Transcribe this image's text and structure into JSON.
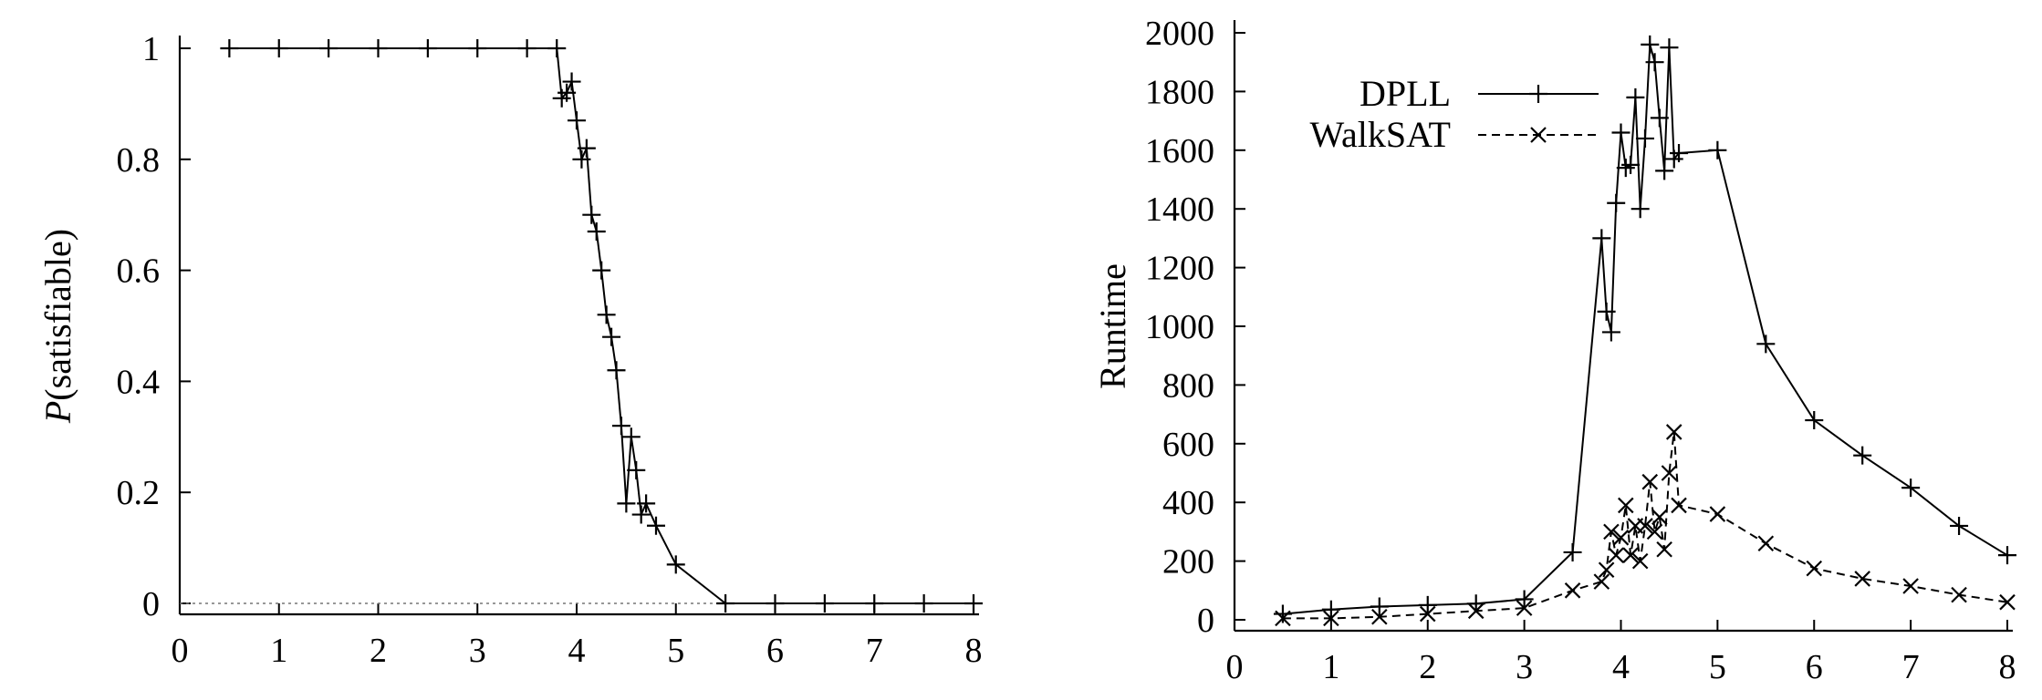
{
  "chart_data": [
    {
      "type": "line",
      "title": "",
      "xlabel": "",
      "ylabel_prefix": "P",
      "ylabel_rest": "(satisfiable)",
      "xlim": [
        0,
        8
      ],
      "ylim": [
        0,
        1
      ],
      "xticks": [
        0,
        1,
        2,
        3,
        4,
        5,
        6,
        7,
        8
      ],
      "yticks": [
        0,
        0.2,
        0.4,
        0.6,
        0.8,
        1
      ],
      "ytick_labels": [
        "0",
        "0.2",
        "0.4",
        "0.6",
        "0.8",
        "1"
      ],
      "reference_line": {
        "y": 0,
        "style": "dotted",
        "x_end": 5.5
      },
      "grid": false,
      "series": [
        {
          "marker": "plus",
          "line": "solid",
          "x": [
            0.5,
            1.0,
            1.5,
            2.0,
            2.5,
            3.0,
            3.5,
            3.8,
            3.85,
            3.9,
            3.95,
            4.0,
            4.05,
            4.1,
            4.15,
            4.2,
            4.25,
            4.3,
            4.35,
            4.4,
            4.45,
            4.5,
            4.55,
            4.6,
            4.65,
            4.7,
            4.8,
            5.0,
            5.5,
            6.0,
            6.5,
            7.0,
            7.5,
            8.0
          ],
          "y": [
            1,
            1,
            1,
            1,
            1,
            1,
            1,
            1,
            0.91,
            0.92,
            0.94,
            0.87,
            0.8,
            0.82,
            0.7,
            0.67,
            0.6,
            0.52,
            0.48,
            0.42,
            0.32,
            0.18,
            0.3,
            0.24,
            0.16,
            0.18,
            0.14,
            0.07,
            0,
            0,
            0,
            0,
            0,
            0
          ]
        }
      ]
    },
    {
      "type": "line",
      "title": "",
      "xlabel": "",
      "ylabel": "Runtime",
      "xlim": [
        0,
        8
      ],
      "ylim": [
        0,
        2000
      ],
      "xticks": [
        0,
        1,
        2,
        3,
        4,
        5,
        6,
        7,
        8
      ],
      "yticks": [
        0,
        200,
        400,
        600,
        800,
        1000,
        1200,
        1400,
        1600,
        1800,
        2000
      ],
      "legend": "top-left",
      "grid": false,
      "series": [
        {
          "name": "DPLL",
          "marker": "plus",
          "line": "solid",
          "x": [
            0.5,
            1.0,
            1.5,
            2.0,
            2.5,
            3.0,
            3.5,
            3.8,
            3.85,
            3.9,
            3.95,
            4.0,
            4.05,
            4.1,
            4.15,
            4.2,
            4.25,
            4.3,
            4.35,
            4.4,
            4.45,
            4.5,
            4.55,
            4.6,
            5.0,
            5.5,
            6.0,
            6.5,
            7.0,
            7.5,
            8.0
          ],
          "y": [
            20,
            35,
            45,
            50,
            55,
            70,
            230,
            1300,
            1050,
            980,
            1420,
            1660,
            1540,
            1550,
            1780,
            1400,
            1640,
            1960,
            1900,
            1710,
            1530,
            1950,
            1570,
            1590,
            1600,
            940,
            680,
            560,
            450,
            320,
            220
          ]
        },
        {
          "name": "WalkSAT",
          "marker": "x",
          "line": "dashed",
          "x": [
            0.5,
            1.0,
            1.5,
            2.0,
            2.5,
            3.0,
            3.5,
            3.8,
            3.85,
            3.9,
            3.95,
            4.0,
            4.05,
            4.1,
            4.15,
            4.2,
            4.25,
            4.3,
            4.35,
            4.4,
            4.45,
            4.5,
            4.55,
            4.6,
            5.0,
            5.5,
            6.0,
            6.5,
            7.0,
            7.5,
            8.0
          ],
          "y": [
            5,
            5,
            10,
            20,
            30,
            40,
            100,
            130,
            170,
            300,
            220,
            280,
            390,
            220,
            320,
            200,
            320,
            470,
            300,
            350,
            240,
            500,
            640,
            390,
            360,
            260,
            175,
            140,
            115,
            85,
            60
          ]
        }
      ]
    }
  ]
}
